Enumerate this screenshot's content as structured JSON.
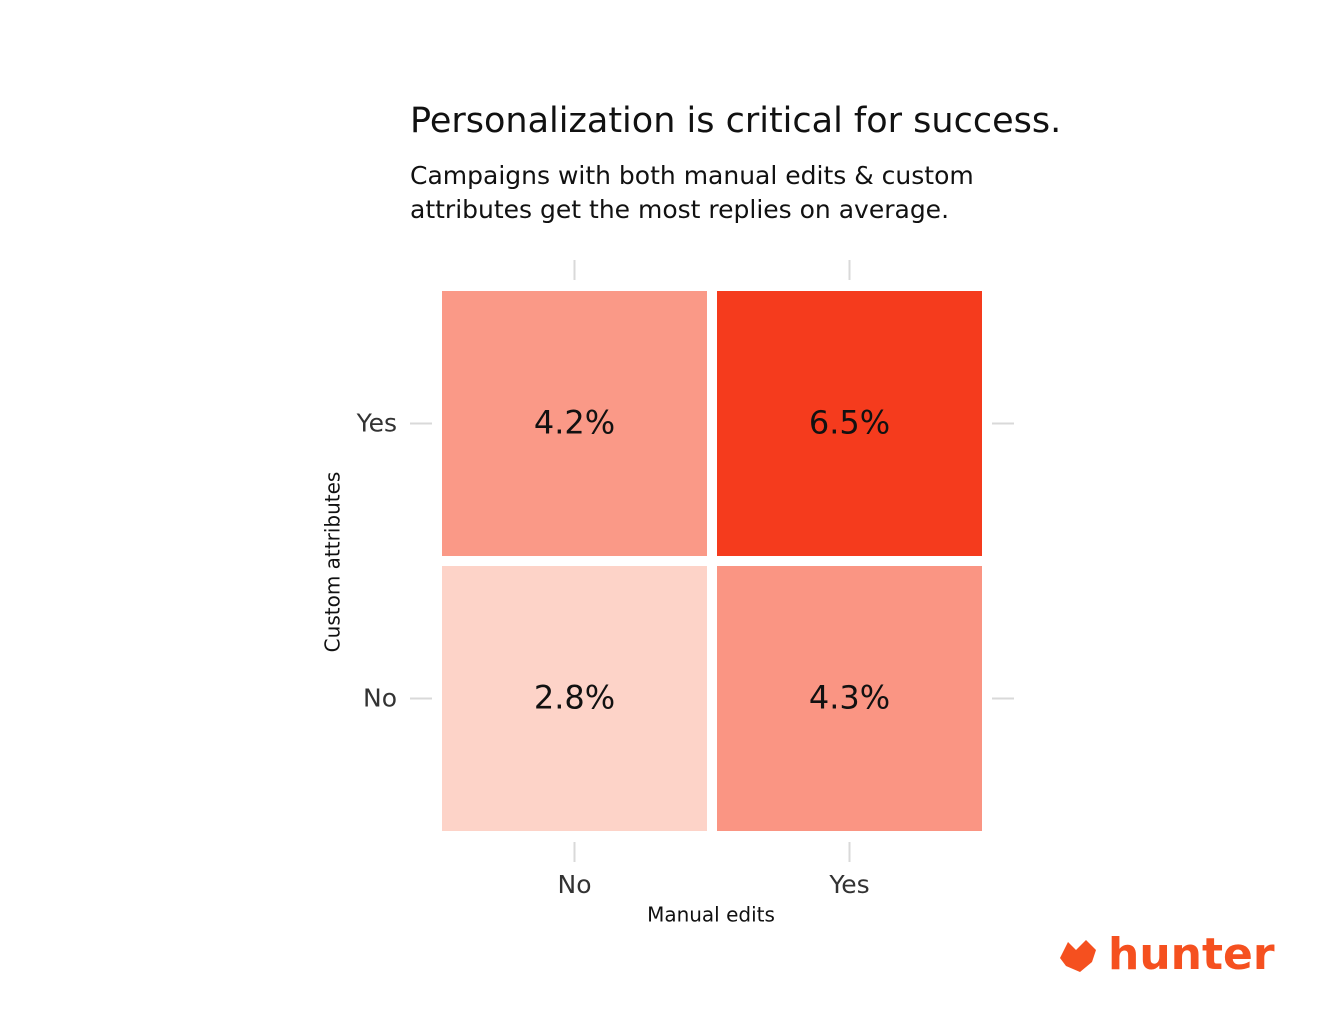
{
  "chart_data": {
    "type": "heatmap",
    "title": "Personalization is critical for success.",
    "subtitle": [
      "Campaigns with both manual edits & custom",
      "attributes get the most replies on average."
    ],
    "x_label": "Manual edits",
    "y_label": "Custom attributes",
    "x_categories": [
      "No",
      "Yes"
    ],
    "y_categories": [
      "No",
      "Yes"
    ],
    "values": [
      [
        2.8,
        4.3
      ],
      [
        4.2,
        6.5
      ]
    ],
    "value_labels": [
      [
        "2.8%",
        "4.3%"
      ],
      [
        "4.2%",
        "6.5%"
      ]
    ],
    "colormap": [
      "#fdd3c8",
      "#f53b1d"
    ]
  },
  "brand": "hunter"
}
